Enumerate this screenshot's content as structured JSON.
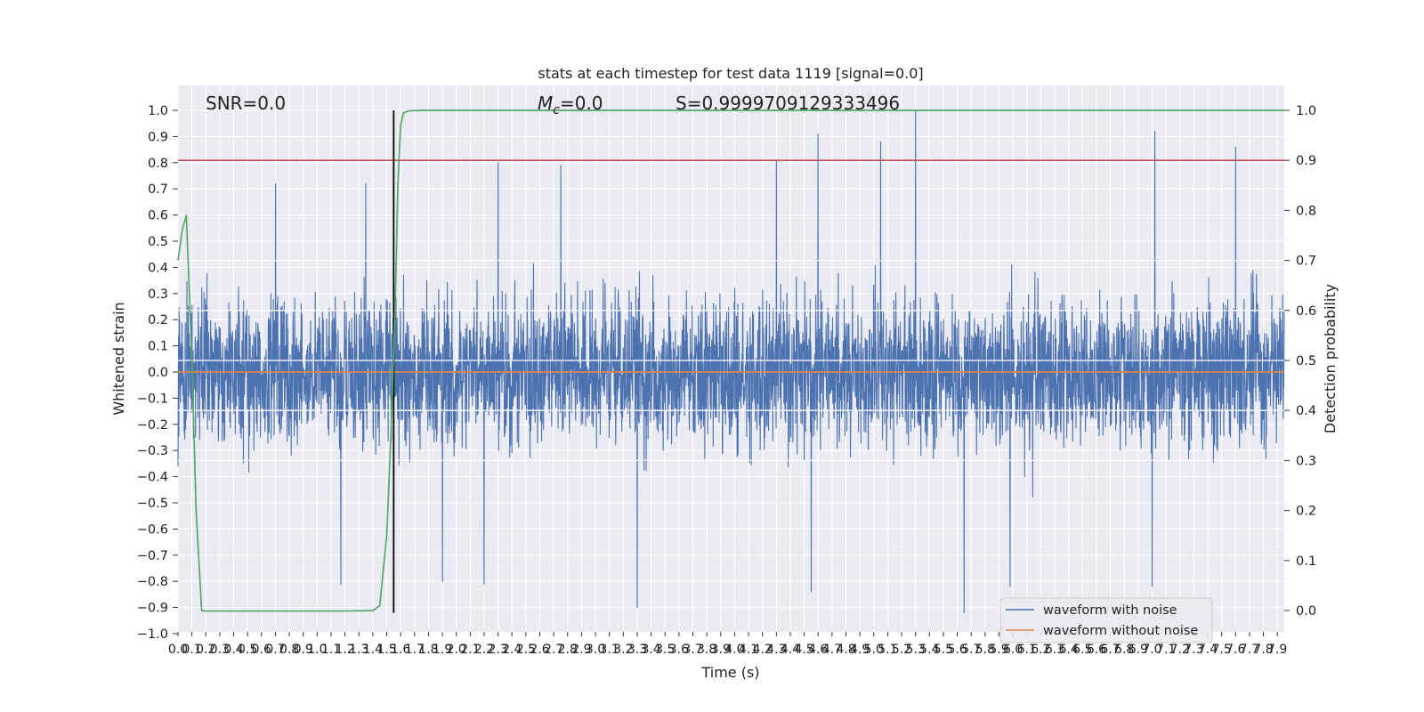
{
  "chart_data": {
    "type": "line",
    "title": "stats at each timestep for test data 1119 [signal=0.0]",
    "xlabel": "Time (s)",
    "ylabel": "Whitened strain",
    "ylabel_right": "Detection probability",
    "xlim": [
      0.0,
      7.95
    ],
    "ylim": [
      -1.0,
      1.0
    ],
    "ylim_right": [
      -0.045,
      1.05
    ],
    "grid": true,
    "legend_position": "bottom-right",
    "annotations": {
      "snr": "SNR=0.0",
      "mc_symbol": "M",
      "mc_subscript": "c",
      "mc_value": "=0.0",
      "s": "S=0.9999709129333496"
    },
    "x_ticks": [
      "0.0",
      "0.1",
      "0.2",
      "0.3",
      "0.4",
      "0.5",
      "0.6",
      "0.7",
      "0.8",
      "0.9",
      "1.0",
      "1.1",
      "1.2",
      "1.3",
      "1.4",
      "1.5",
      "1.6",
      "1.7",
      "1.8",
      "1.9",
      "2.0",
      "2.1",
      "2.2",
      "2.3",
      "2.4",
      "2.5",
      "2.6",
      "2.7",
      "2.8",
      "2.9",
      "3.0",
      "3.1",
      "3.2",
      "3.3",
      "3.4",
      "3.5",
      "3.6",
      "3.7",
      "3.8",
      "3.9",
      "4.0",
      "4.1",
      "4.2",
      "4.3",
      "4.4",
      "4.5",
      "4.6",
      "4.7",
      "4.8",
      "4.9",
      "5.0",
      "5.1",
      "5.2",
      "5.3",
      "5.4",
      "5.5",
      "5.6",
      "5.7",
      "5.8",
      "5.9",
      "6.0",
      "6.1",
      "6.2",
      "6.3",
      "6.4",
      "6.5",
      "6.6",
      "6.7",
      "6.8",
      "6.9",
      "7.0",
      "7.1",
      "7.2",
      "7.3",
      "7.4",
      "7.5",
      "7.6",
      "7.7",
      "7.8",
      "7.9"
    ],
    "y_ticks_left": [
      "1.0",
      "0.9",
      "0.8",
      "0.7",
      "0.6",
      "0.5",
      "0.4",
      "0.3",
      "0.2",
      "0.1",
      "0.0",
      "−0.1",
      "−0.2",
      "−0.3",
      "−0.4",
      "−0.5",
      "−0.6",
      "−0.7",
      "−0.8",
      "−0.9",
      "−1.0"
    ],
    "y_ticks_right": [
      "1.0",
      "0.9",
      "0.8",
      "0.7",
      "0.6",
      "0.5",
      "0.4",
      "0.3",
      "0.2",
      "0.1",
      "0.0"
    ],
    "threshold": 0.9,
    "signal_time": 1.55,
    "series": [
      {
        "name": "waveform with noise",
        "color": "#4c72b0",
        "kind": "dense-noise",
        "amplitude_typical": 0.35,
        "amplitude_peak": 1.0,
        "peaks": [
          {
            "x": 4.6,
            "y": 0.91
          },
          {
            "x": 5.05,
            "y": 0.88
          },
          {
            "x": 5.3,
            "y": 1.0
          },
          {
            "x": 7.02,
            "y": 0.92
          },
          {
            "x": 7.6,
            "y": 0.86
          },
          {
            "x": 4.3,
            "y": 0.81
          },
          {
            "x": 2.3,
            "y": 0.8
          },
          {
            "x": 2.75,
            "y": 0.79
          },
          {
            "x": 3.3,
            "y": -0.9
          },
          {
            "x": 5.65,
            "y": -0.92
          },
          {
            "x": 5.98,
            "y": -0.82
          },
          {
            "x": 4.55,
            "y": -0.84
          },
          {
            "x": 2.2,
            "y": -0.81
          },
          {
            "x": 1.9,
            "y": -0.8
          },
          {
            "x": 7.0,
            "y": -0.82
          },
          {
            "x": 1.17,
            "y": -0.81
          },
          {
            "x": 0.7,
            "y": 0.72
          },
          {
            "x": 1.35,
            "y": 0.72
          }
        ]
      },
      {
        "name": "waveform without noise",
        "color": "#dd8452",
        "y": 0.0
      },
      {
        "name": "detection probability",
        "color": "#55a868",
        "axis": "right",
        "x": [
          0.0,
          0.03,
          0.06,
          0.1,
          0.13,
          0.17,
          0.2,
          0.35,
          0.8,
          1.2,
          1.4,
          1.45,
          1.5,
          1.53,
          1.56,
          1.58,
          1.6,
          1.62,
          1.66,
          1.75,
          2.0,
          7.95
        ],
        "y": [
          0.7,
          0.76,
          0.79,
          0.5,
          0.2,
          0.0,
          -0.001,
          -0.001,
          -0.001,
          -0.001,
          0.0,
          0.01,
          0.15,
          0.35,
          0.6,
          0.85,
          0.97,
          0.995,
          0.999,
          1.0,
          1.0,
          1.0
        ]
      },
      {
        "name": "threshold",
        "color": "#c44e52",
        "axis": "right",
        "y": 0.9
      },
      {
        "name": "signal marker",
        "color": "#000000",
        "x": 1.55
      }
    ]
  },
  "legend": [
    {
      "label": "waveform with noise",
      "color": "#4c72b0"
    },
    {
      "label": "waveform without noise",
      "color": "#dd8452"
    }
  ]
}
